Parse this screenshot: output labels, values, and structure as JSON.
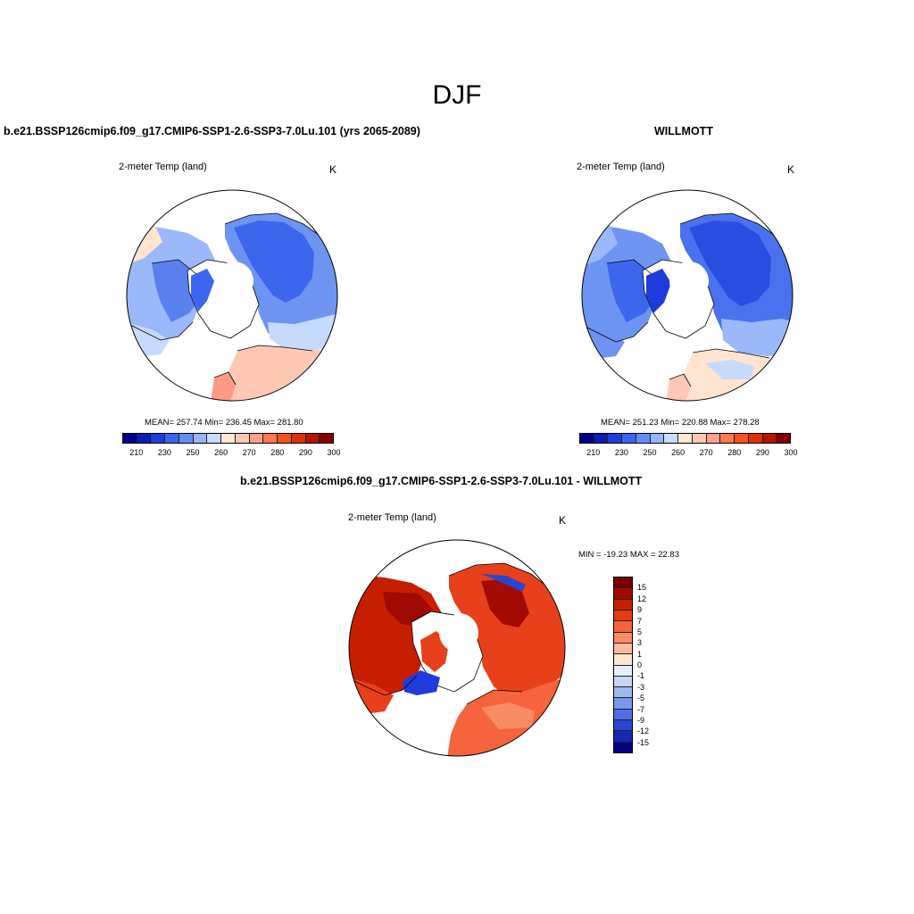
{
  "figure": {
    "title": "DJF"
  },
  "panels": [
    {
      "title": "b.e21.BSSP126cmip6.f09_g17.CMIP6-SSP1-2.6-SSP3-7.0Lu.101 (yrs 2065-2089)",
      "variable": "2-meter Temp (land)",
      "units": "K",
      "stats": "MEAN= 257.74  Min= 236.45  Max= 281.80",
      "colorbar_labels": [
        "210",
        "230",
        "250",
        "260",
        "270",
        "280",
        "290",
        "300"
      ]
    },
    {
      "title": "WILLMOTT",
      "variable": "2-meter Temp (land)",
      "units": "K",
      "stats": "MEAN= 251.23  Min= 220.88  Max= 278.28",
      "colorbar_labels": [
        "210",
        "230",
        "250",
        "260",
        "270",
        "280",
        "290",
        "300"
      ]
    },
    {
      "title": "b.e21.BSSP126cmip6.f09_g17.CMIP6-SSP1-2.6-SSP3-7.0Lu.101 - WILLMOTT",
      "variable": "2-meter Temp (land)",
      "units": "K",
      "stats": "MIN = -19.23 MAX =  22.83",
      "colorbar_labels": [
        "15",
        "12",
        "9",
        "7",
        "5",
        "3",
        "1",
        "0",
        "-1",
        "-3",
        "-5",
        "-7",
        "-9",
        "-12",
        "-15"
      ]
    }
  ],
  "colors": {
    "abs_scale": [
      "#00008c",
      "#0a1eb4",
      "#1e3cdc",
      "#3c64f0",
      "#648cf5",
      "#96b4fa",
      "#c8dcff",
      "#ffe6d2",
      "#ffc8b4",
      "#ffa08c",
      "#ff7850",
      "#f5501e",
      "#dc320a",
      "#b41400",
      "#820000"
    ],
    "diff_scale": [
      "#780000",
      "#a00a00",
      "#c81e00",
      "#e63c10",
      "#f5643c",
      "#fa8c64",
      "#fcbc9c",
      "#fde6d2",
      "#e6f0fa",
      "#c8d7f5",
      "#a0b9f0",
      "#7896eb",
      "#506ee6",
      "#2846d2",
      "#1428b4",
      "#000082"
    ]
  }
}
